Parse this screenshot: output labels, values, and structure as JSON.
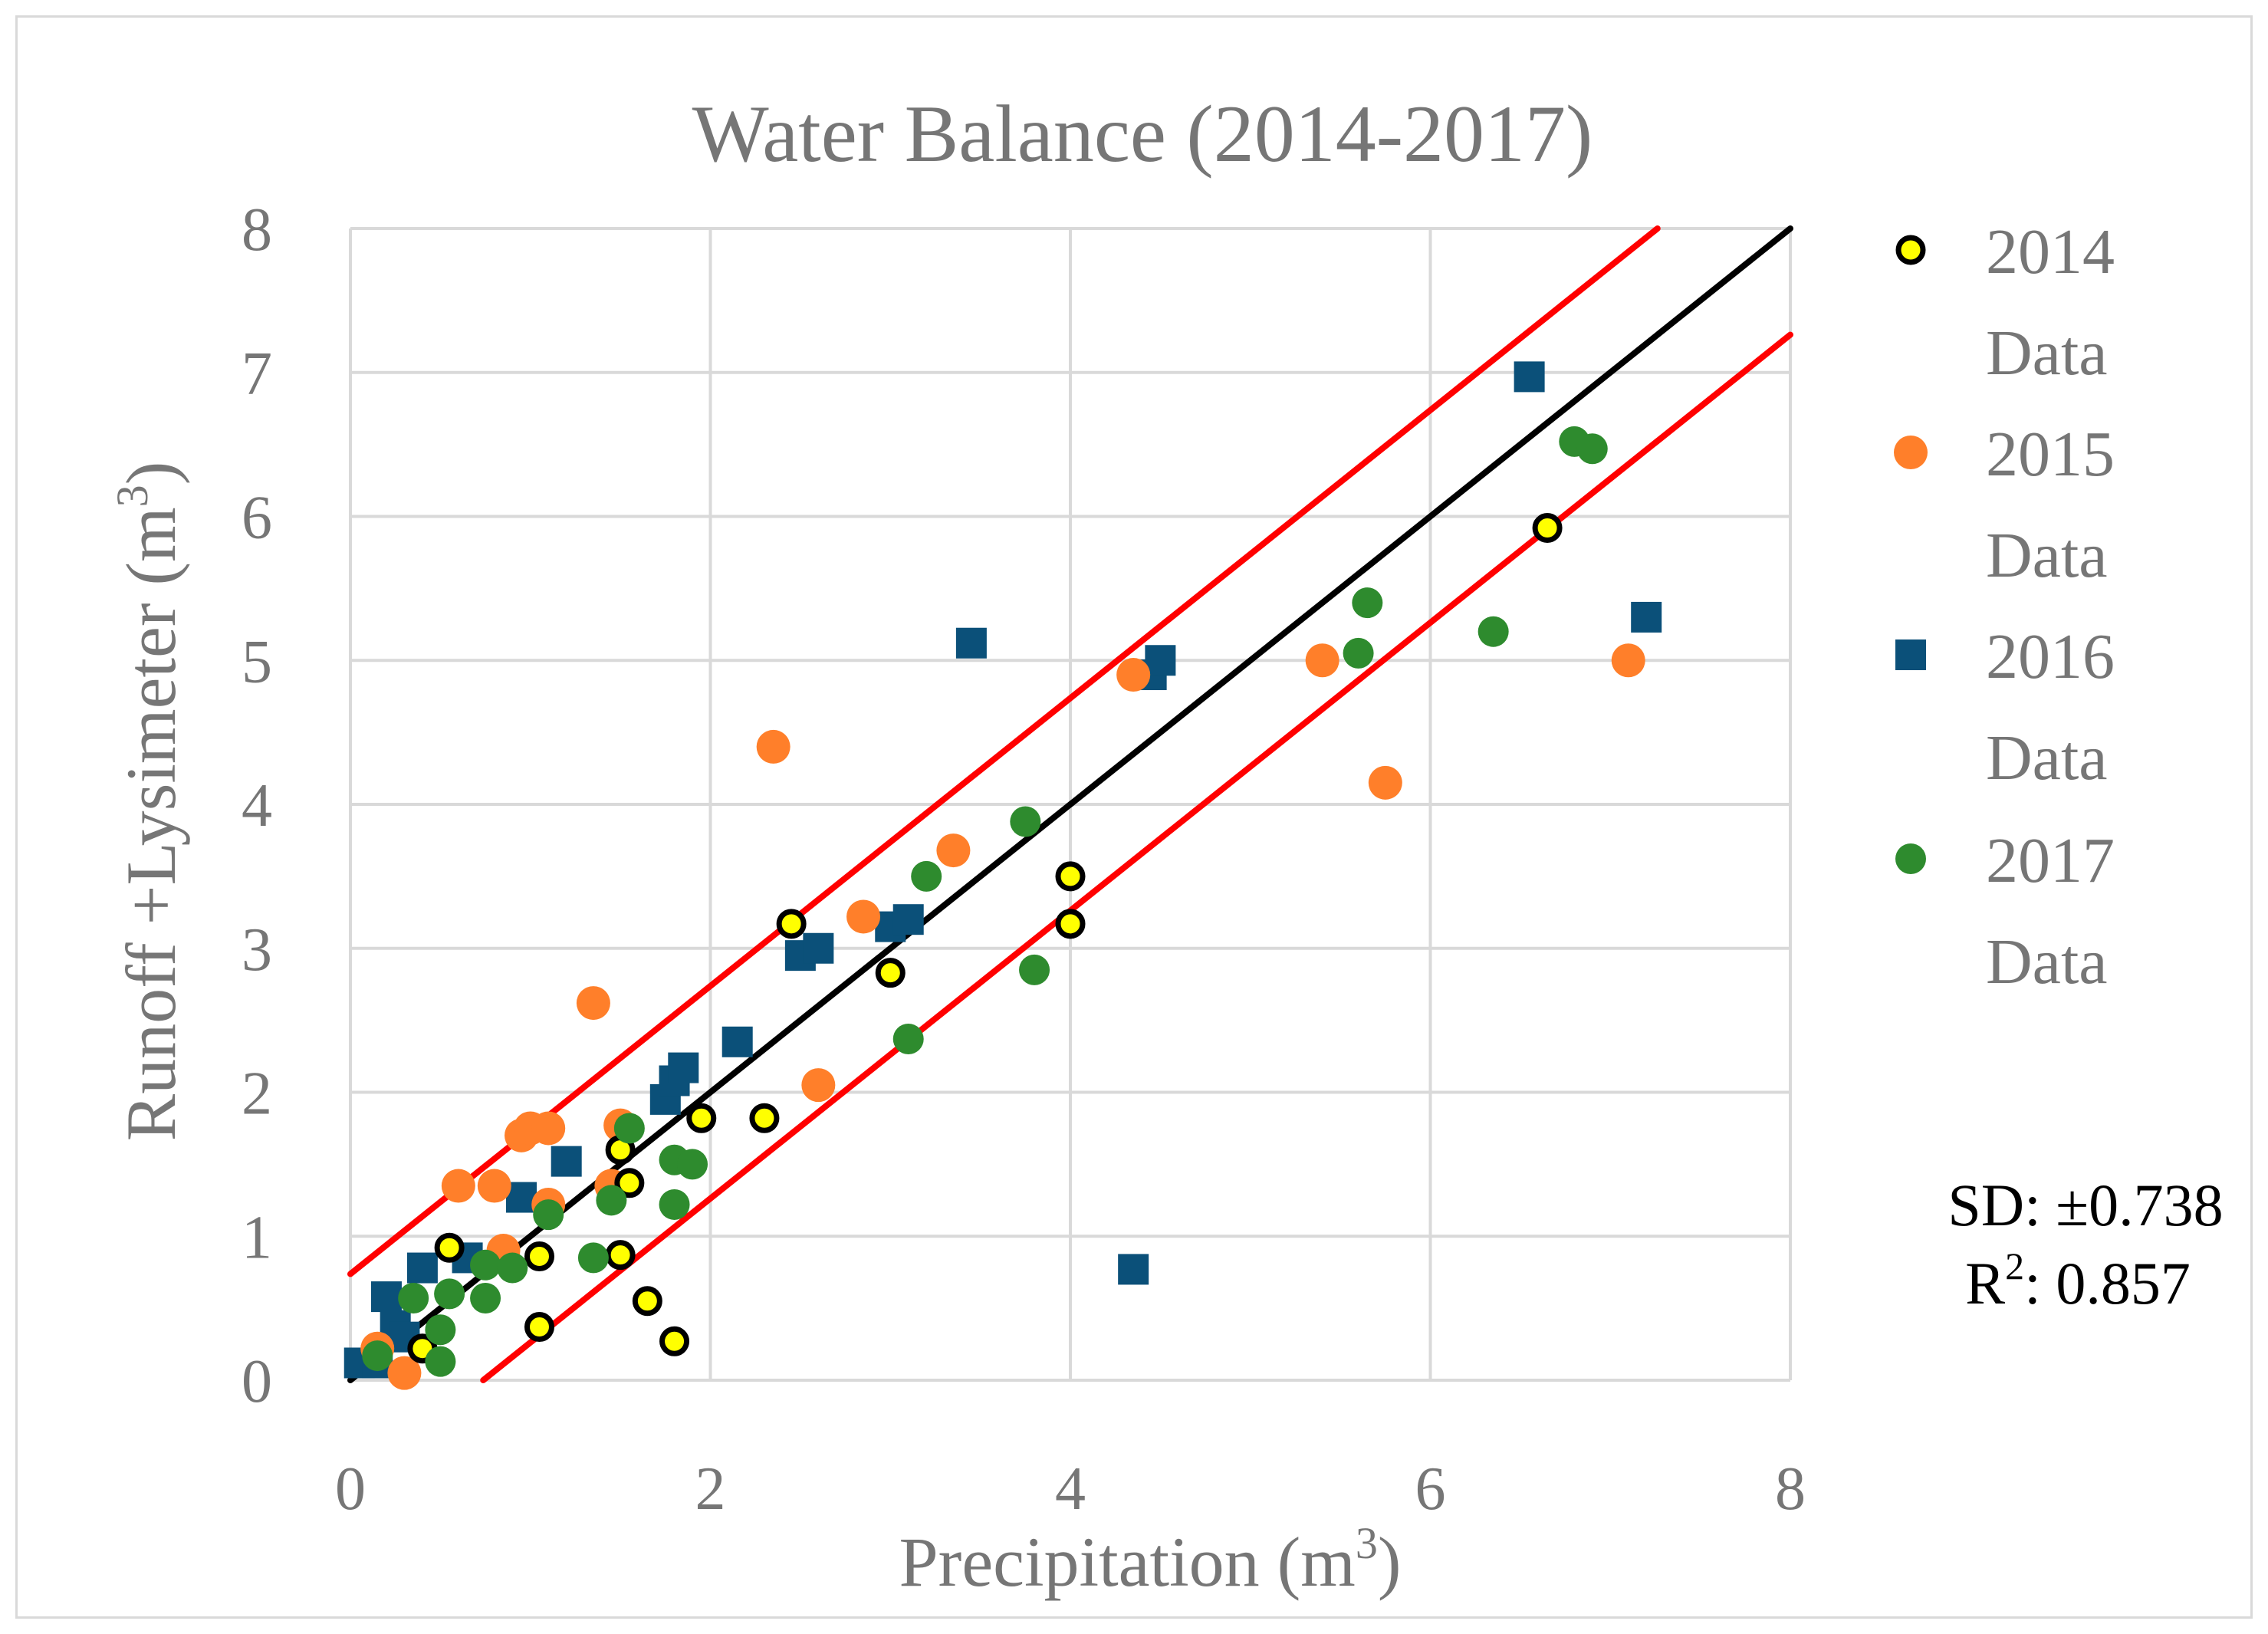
{
  "chart_data": {
    "type": "scatter",
    "title": "Water Balance (2014-2017)",
    "xlabel": "Precipitation (m",
    "xlabel_sup": "3",
    "xlabel_end": ")",
    "ylabel": "Runoff +Lysimeter (m",
    "ylabel_sup": "3",
    "ylabel_end": ")",
    "xlim": [
      0,
      8
    ],
    "ylim": [
      0,
      8
    ],
    "x_ticks": [
      "0",
      "2",
      "4",
      "6",
      "8"
    ],
    "y_ticks": [
      "0",
      "1",
      "2",
      "3",
      "4",
      "5",
      "6",
      "7",
      "8"
    ],
    "grid": true,
    "legend_position": "right",
    "series": [
      {
        "name": "2014",
        "name_line2": "Data",
        "marker": "circle",
        "color": "#ffff00",
        "edge": "#000000",
        "points": [
          [
            0.4,
            0.22
          ],
          [
            0.55,
            0.92
          ],
          [
            1.05,
            0.86
          ],
          [
            1.05,
            0.37
          ],
          [
            1.5,
            1.6
          ],
          [
            1.55,
            1.37
          ],
          [
            1.5,
            0.87
          ],
          [
            1.65,
            0.55
          ],
          [
            1.8,
            0.27
          ],
          [
            1.95,
            1.82
          ],
          [
            2.3,
            1.82
          ],
          [
            2.45,
            3.17
          ],
          [
            3.0,
            2.83
          ],
          [
            4.0,
            3.5
          ],
          [
            4.0,
            3.17
          ],
          [
            6.65,
            5.92
          ]
        ]
      },
      {
        "name": "2015",
        "name_line2": "Data",
        "marker": "circle",
        "color": "#ff7f2a",
        "edge": "#ff7f2a",
        "points": [
          [
            0.15,
            0.22
          ],
          [
            0.3,
            0.05
          ],
          [
            0.6,
            1.35
          ],
          [
            0.8,
            1.35
          ],
          [
            0.85,
            0.9
          ],
          [
            0.95,
            1.7
          ],
          [
            1.0,
            1.75
          ],
          [
            1.1,
            1.75
          ],
          [
            1.1,
            1.22
          ],
          [
            1.35,
            2.62
          ],
          [
            1.45,
            1.35
          ],
          [
            1.5,
            1.77
          ],
          [
            2.35,
            4.4
          ],
          [
            2.6,
            2.05
          ],
          [
            2.85,
            3.22
          ],
          [
            3.35,
            3.68
          ],
          [
            4.35,
            4.9
          ],
          [
            5.4,
            5.0
          ],
          [
            5.75,
            4.15
          ],
          [
            7.1,
            5.0
          ]
        ]
      },
      {
        "name": "2016",
        "name_line2": "Data",
        "marker": "square",
        "color": "#0b5079",
        "edge": "#0b5079",
        "points": [
          [
            0.05,
            0.12
          ],
          [
            0.15,
            0.12
          ],
          [
            0.2,
            0.58
          ],
          [
            0.25,
            0.38
          ],
          [
            0.3,
            0.3
          ],
          [
            0.4,
            0.78
          ],
          [
            0.65,
            0.85
          ],
          [
            0.95,
            1.27
          ],
          [
            1.2,
            1.52
          ],
          [
            1.75,
            1.95
          ],
          [
            1.8,
            2.08
          ],
          [
            1.85,
            2.17
          ],
          [
            2.15,
            2.35
          ],
          [
            2.5,
            2.95
          ],
          [
            2.6,
            3.0
          ],
          [
            3.0,
            3.15
          ],
          [
            3.1,
            3.2
          ],
          [
            3.45,
            5.12
          ],
          [
            4.35,
            0.77
          ],
          [
            4.45,
            4.9
          ],
          [
            4.5,
            5.0
          ],
          [
            6.55,
            6.97
          ],
          [
            7.2,
            5.3
          ]
        ]
      },
      {
        "name": "2017",
        "name_line2": "Data",
        "marker": "circle",
        "color": "#2e8b2e",
        "edge": "#2e8b2e",
        "points": [
          [
            0.15,
            0.17
          ],
          [
            0.35,
            0.57
          ],
          [
            0.5,
            0.35
          ],
          [
            0.5,
            0.13
          ],
          [
            0.55,
            0.6
          ],
          [
            0.75,
            0.57
          ],
          [
            0.75,
            0.8
          ],
          [
            0.9,
            0.78
          ],
          [
            1.1,
            1.15
          ],
          [
            1.35,
            0.85
          ],
          [
            1.45,
            1.25
          ],
          [
            1.55,
            1.75
          ],
          [
            1.8,
            1.53
          ],
          [
            1.8,
            1.22
          ],
          [
            1.9,
            1.5
          ],
          [
            3.1,
            2.37
          ],
          [
            3.2,
            3.5
          ],
          [
            3.75,
            3.88
          ],
          [
            3.8,
            2.85
          ],
          [
            5.6,
            5.05
          ],
          [
            5.65,
            5.4
          ],
          [
            6.35,
            5.2
          ],
          [
            6.8,
            6.52
          ],
          [
            6.9,
            6.47
          ]
        ]
      }
    ],
    "fit_lines": [
      {
        "name": "regression",
        "color": "#000000",
        "intercept": 0.0,
        "slope": 1.0
      },
      {
        "name": "upper bound",
        "color": "#ff0000",
        "intercept": 0.738,
        "slope": 1.0
      },
      {
        "name": "lower bound",
        "color": "#ff0000",
        "intercept": -0.738,
        "slope": 1.0
      }
    ],
    "annotations": {
      "sd_text": "SD: ±0.738",
      "r2_label": "R",
      "r2_sup": "2",
      "r2_value": ": 0.857"
    }
  }
}
